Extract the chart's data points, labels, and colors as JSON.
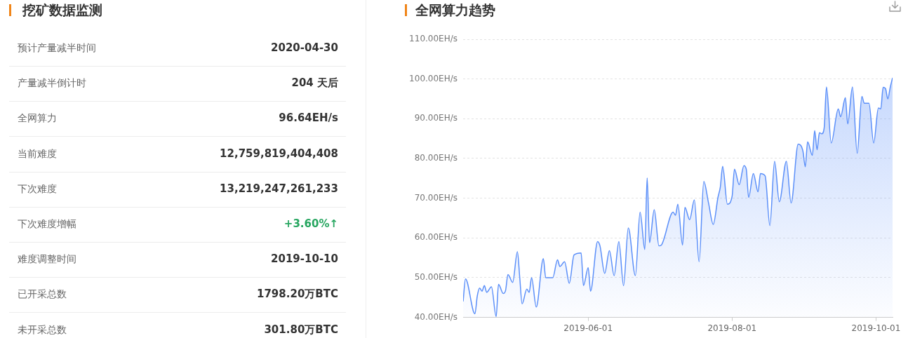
{
  "chart_data": [
    {
      "type": "other",
      "title": "挖矿数据监测",
      "categories": [
        "预计产量减半时间",
        "产量减半倒计时",
        "全网算力",
        "当前难度",
        "下次难度",
        "下次难度增幅",
        "难度调整时间",
        "已开采总数",
        "未开采总数"
      ],
      "value_labels": [
        "2020-04-30",
        "204 天后",
        "96.64EH/s",
        "12,759,819,404,408",
        "13,219,247,261,233",
        "+3.60%↑",
        "2019-10-10",
        "1798.20万BTC",
        "301.80万BTC"
      ],
      "colors": [
        "#333333",
        "#333333",
        "#333333",
        "#333333",
        "#333333",
        "#27a660",
        "#333333",
        "#333333",
        "#333333"
      ]
    },
    {
      "type": "area",
      "title": "全网算力趋势",
      "color": "#5b8ff9",
      "x": [
        "2019-04-09",
        "2019-04-10",
        "2019-04-14",
        "2019-04-15",
        "2019-04-16",
        "2019-04-17",
        "2019-04-18",
        "2019-04-19",
        "2019-04-21",
        "2019-04-23",
        "2019-04-24",
        "2019-04-26",
        "2019-04-27",
        "2019-04-28",
        "2019-04-30",
        "2019-05-02",
        "2019-05-03",
        "2019-05-04",
        "2019-05-06",
        "2019-05-07",
        "2019-05-08",
        "2019-05-10",
        "2019-05-13",
        "2019-05-14",
        "2019-05-17",
        "2019-05-19",
        "2019-05-20",
        "2019-05-22",
        "2019-05-24",
        "2019-05-26",
        "2019-05-29",
        "2019-05-30",
        "2019-06-01",
        "2019-06-02",
        "2019-06-05",
        "2019-06-06",
        "2019-06-08",
        "2019-06-10",
        "2019-06-12",
        "2019-06-14",
        "2019-06-16",
        "2019-06-18",
        "2019-06-21",
        "2019-06-23",
        "2019-06-25",
        "2019-06-26",
        "2019-06-27",
        "2019-06-29",
        "2019-07-01",
        "2019-07-02",
        "2019-07-07",
        "2019-07-08",
        "2019-07-09",
        "2019-07-11",
        "2019-07-12",
        "2019-07-14",
        "2019-07-16",
        "2019-07-18",
        "2019-07-20",
        "2019-07-22",
        "2019-07-24",
        "2019-07-26",
        "2019-07-27",
        "2019-07-28",
        "2019-07-30",
        "2019-08-01",
        "2019-08-02",
        "2019-08-04",
        "2019-08-06",
        "2019-08-07",
        "2019-08-08",
        "2019-08-10",
        "2019-08-12",
        "2019-08-13",
        "2019-08-15",
        "2019-08-17",
        "2019-08-19",
        "2019-08-21",
        "2019-08-24",
        "2019-08-26",
        "2019-08-29",
        "2019-08-31",
        "2019-09-01",
        "2019-09-02",
        "2019-09-04",
        "2019-09-05",
        "2019-09-06",
        "2019-09-07",
        "2019-09-08",
        "2019-09-09",
        "2019-09-10",
        "2019-09-12",
        "2019-09-15",
        "2019-09-16",
        "2019-09-18",
        "2019-09-19",
        "2019-09-21",
        "2019-09-23",
        "2019-09-25",
        "2019-09-26",
        "2019-09-28",
        "2019-09-30",
        "2019-10-02",
        "2019-10-03",
        "2019-10-04",
        "2019-10-05",
        "2019-10-06",
        "2019-10-07",
        "2019-10-08"
      ],
      "values": [
        44.0,
        49.7,
        40.9,
        45.4,
        47.4,
        46.6,
        48.0,
        46.3,
        47.7,
        40.2,
        48.3,
        46.0,
        46.8,
        50.8,
        48.8,
        56.5,
        50.0,
        43.4,
        47.1,
        46.3,
        50.0,
        42.6,
        54.8,
        50.0,
        50.0,
        54.5,
        52.8,
        54.0,
        48.6,
        55.7,
        56.2,
        48.0,
        52.5,
        46.6,
        59.1,
        58.0,
        51.1,
        56.8,
        50.5,
        59.1,
        48.0,
        62.5,
        50.5,
        66.5,
        57.1,
        75.1,
        58.8,
        67.1,
        58.0,
        58.2,
        66.5,
        65.7,
        68.5,
        58.2,
        67.7,
        64.6,
        69.6,
        54.0,
        74.2,
        68.8,
        63.4,
        70.2,
        72.8,
        78.0,
        68.5,
        70.5,
        77.3,
        73.4,
        78.2,
        77.3,
        70.2,
        76.2,
        71.6,
        76.2,
        75.6,
        63.1,
        79.3,
        69.1,
        79.3,
        68.8,
        83.6,
        81.9,
        77.9,
        84.2,
        80.8,
        87.0,
        82.2,
        86.5,
        86.2,
        87.6,
        98.0,
        83.9,
        92.5,
        90.5,
        95.3,
        88.7,
        98.0,
        81.3,
        95.6,
        93.9,
        93.9,
        83.9,
        92.7,
        92.5,
        97.9,
        97.6,
        95.0,
        97.9,
        100.3
      ],
      "xlim": [
        "2019-04-09",
        "2019-10-08"
      ],
      "xticks": [
        "2019-06-01",
        "2019-08-01",
        "2019-10-01"
      ],
      "ylim": [
        40,
        110
      ],
      "yticks": [
        {
          "value": 40,
          "label": "40.00EH/s"
        },
        {
          "value": 50,
          "label": "50.00EH/s"
        },
        {
          "value": 60,
          "label": "60.00EH/s"
        },
        {
          "value": 70,
          "label": "70.00EH/s"
        },
        {
          "value": 80,
          "label": "80.00EH/s"
        },
        {
          "value": 90,
          "label": "90.00EH/s"
        },
        {
          "value": 100,
          "label": "100.00EH/s"
        },
        {
          "value": 110,
          "label": "110.00EH/s"
        }
      ],
      "grid": "y"
    }
  ]
}
